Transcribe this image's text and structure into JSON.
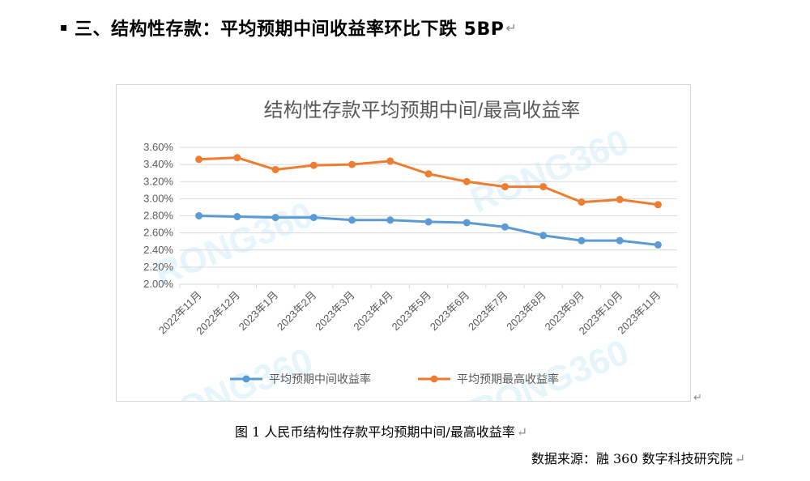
{
  "heading": {
    "bullet": "▪",
    "text": "三、结构性存款：平均预期中间收益率环比下跌 5BP",
    "para_mark": "↵"
  },
  "chart_data": {
    "type": "line",
    "title": "结构性存款平均预期中间/最高收益率",
    "categories": [
      "2022年11月",
      "2022年12月",
      "2023年1月",
      "2023年2月",
      "2023年3月",
      "2023年4月",
      "2023年5月",
      "2023年6月",
      "2023年7月",
      "2023年8月",
      "2023年9月",
      "2023年10月",
      "2023年11月"
    ],
    "series": [
      {
        "name": "平均预期中间收益率",
        "color": "#5b9bd5",
        "values": [
          2.8,
          2.79,
          2.78,
          2.78,
          2.75,
          2.75,
          2.73,
          2.72,
          2.67,
          2.57,
          2.51,
          2.51,
          2.46
        ]
      },
      {
        "name": "平均预期最高收益率",
        "color": "#ed7d31",
        "values": [
          3.46,
          3.48,
          3.34,
          3.39,
          3.4,
          3.44,
          3.29,
          3.2,
          3.14,
          3.14,
          2.96,
          2.99,
          2.93
        ]
      }
    ],
    "yticks": [
      "2.00%",
      "2.20%",
      "2.40%",
      "2.60%",
      "2.80%",
      "3.00%",
      "3.20%",
      "3.40%",
      "3.60%"
    ],
    "ylim": [
      2.0,
      3.6
    ],
    "grid": true,
    "legend_position": "bottom",
    "watermark": "RONG360",
    "watermark_color": "#e6f4fb",
    "gridline_color": "#d9d9d9",
    "tick_color": "#595959"
  },
  "caption": "图 1  人民币结构性存款平均预期中间/最高收益率",
  "source": "数据来源：融 360 数字科技研究院",
  "para_mark": "↵"
}
